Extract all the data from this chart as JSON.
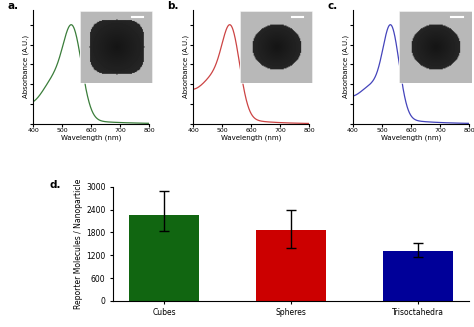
{
  "panel_a": {
    "label": "a.",
    "color": "#3a7d3a",
    "peak_nm": 536,
    "peak_sigma": 32,
    "shoulder_nm": 470,
    "shoulder_sigma": 40,
    "shoulder_amp": 0.38,
    "baseline_amp": 0.18,
    "baseline_decay": 0.008,
    "xlabel": "Wavelength (nm)",
    "ylabel": "Absorbance (A.U.)"
  },
  "panel_b": {
    "label": "b.",
    "color": "#cc4444",
    "peak_nm": 532,
    "peak_sigma": 30,
    "shoulder_nm": 475,
    "shoulder_sigma": 45,
    "shoulder_amp": 0.42,
    "baseline_amp": 0.35,
    "baseline_decay": 0.01,
    "xlabel": "Wavelength (nm)",
    "ylabel": "Absorbance (A.U.)"
  },
  "panel_c": {
    "label": "c.",
    "color": "#4444bb",
    "peak_nm": 532,
    "peak_sigma": 28,
    "shoulder_nm": 468,
    "shoulder_sigma": 42,
    "shoulder_amp": 0.3,
    "baseline_amp": 0.25,
    "baseline_decay": 0.009,
    "xlabel": "Wavelength (nm)",
    "ylabel": "Absorbance (A.U.)"
  },
  "panel_d": {
    "label": "d.",
    "categories": [
      "Cubes",
      "Spheres",
      "Trisoctahedra"
    ],
    "values": [
      2260,
      1870,
      1300
    ],
    "errors_up": [
      620,
      510,
      230
    ],
    "errors_dn": [
      430,
      490,
      160
    ],
    "colors": [
      "#116611",
      "#cc0000",
      "#000099"
    ],
    "ylabel": "Reporter Molecules / Nanoparticle",
    "ylim": [
      0,
      3000
    ],
    "yticks": [
      0,
      600,
      1200,
      1800,
      2400,
      3000
    ]
  }
}
